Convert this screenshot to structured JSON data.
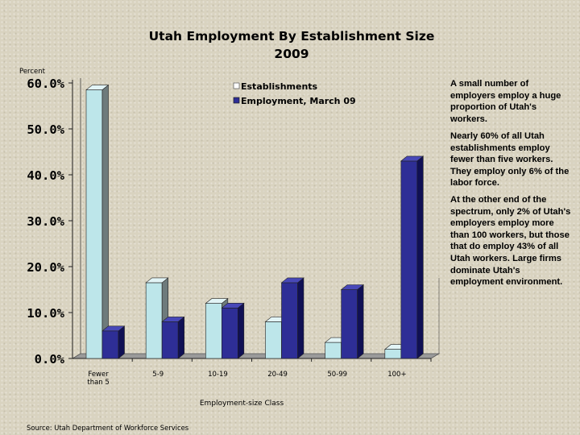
{
  "chart_data": {
    "type": "bar",
    "title": "Utah Employment By Establishment Size",
    "subtitle": "2009",
    "ylabel": "Percent",
    "xlabel": "Employment-size Class",
    "ylim": [
      0,
      60
    ],
    "yticks": [
      "0.0%",
      "10.0%",
      "20.0%",
      "30.0%",
      "40.0%",
      "50.0%",
      "60.0%"
    ],
    "categories": [
      [
        "Fewer",
        "than 5"
      ],
      [
        "5-9"
      ],
      [
        "10-19"
      ],
      [
        "20-49"
      ],
      [
        "50-99"
      ],
      [
        "100+"
      ]
    ],
    "series": [
      {
        "name": "Establishments",
        "values": [
          58.5,
          16.5,
          12,
          8,
          3.5,
          2
        ]
      },
      {
        "name": "Employment, March 09",
        "values": [
          6,
          8,
          11,
          16.5,
          15,
          43
        ]
      }
    ],
    "legend_position": "top-right",
    "colors": {
      "establishments": "#bde6ea",
      "establishments_side": "#6e7b7c",
      "establishments_top": "#e2f4f6",
      "employment": "#2e2e96",
      "employment_side": "#101054",
      "employment_top": "#4848b8",
      "floor": "#9a9a9a",
      "wall": "#b0b0b0"
    }
  },
  "notes": [
    "A small number of employers employ a huge proportion of Utah's workers.",
    "Nearly 60% of all Utah establishments employ fewer than five workers. They employ only 6% of the labor force.",
    "At the other end of the spectrum, only 2% of Utah's employers employ more than 100 workers, but those that do employ 43% of all Utah workers. Large firms dominate Utah's employment environment."
  ],
  "source": "Source: Utah Department of Workforce Services"
}
